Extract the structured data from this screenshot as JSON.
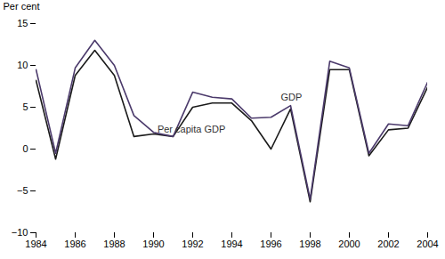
{
  "chart_data": {
    "type": "line",
    "x": [
      1984,
      1985,
      1986,
      1987,
      1988,
      1989,
      1990,
      1991,
      1992,
      1993,
      1994,
      1995,
      1996,
      1997,
      1998,
      1999,
      2000,
      2001,
      2002,
      2003,
      2004
    ],
    "series": [
      {
        "name": "Per capita GDP",
        "color": "#1a1a1a",
        "values": [
          8.2,
          -1.2,
          8.8,
          11.8,
          8.8,
          1.5,
          1.8,
          1.5,
          5.0,
          5.5,
          5.5,
          3.4,
          0.0,
          4.8,
          -6.3,
          9.5,
          9.5,
          -0.8,
          2.3,
          2.5,
          7.4
        ]
      },
      {
        "name": "GDP",
        "color": "#4b3a6b",
        "values": [
          9.5,
          -0.5,
          9.7,
          13.0,
          10.0,
          4.0,
          2.0,
          1.5,
          6.8,
          6.2,
          6.0,
          3.7,
          3.8,
          5.2,
          -6.0,
          10.5,
          9.7,
          -0.5,
          3.0,
          2.8,
          8.0
        ]
      }
    ],
    "y_label": "Per cent",
    "annotations": [
      {
        "text": "GDP",
        "x": 1996.5,
        "y": 5.8
      },
      {
        "text": "Per capita GDP",
        "x": 1990.2,
        "y": 2.0
      }
    ],
    "xlim": [
      1984,
      2004
    ],
    "xticks": [
      1984,
      1986,
      1988,
      1990,
      1992,
      1994,
      1996,
      1998,
      2000,
      2002,
      2004
    ],
    "ylim": [
      -10,
      15
    ],
    "yticks": [
      -10,
      -5,
      0,
      5,
      10,
      15
    ],
    "grid": false
  }
}
